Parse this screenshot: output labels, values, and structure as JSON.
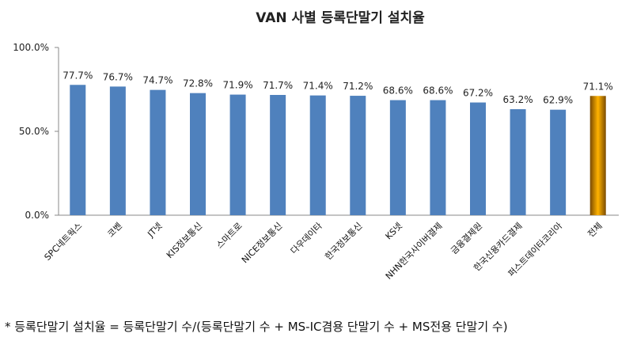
{
  "chart_data": {
    "type": "bar",
    "title": "VAN 사별 등록단말기 설치율",
    "categories": [
      "SPC네트웍스",
      "코벤",
      "JT넷",
      "KIS정보통신",
      "스마트로",
      "NICE정보통신",
      "다우데이타",
      "한국정보통신",
      "KS넷",
      "NHN한국사이버결제",
      "금융결제원",
      "한국신용카드결제",
      "퍼스트데이타코리아",
      "전체"
    ],
    "values": [
      77.7,
      76.7,
      74.7,
      72.8,
      71.9,
      71.7,
      71.4,
      71.2,
      68.6,
      68.6,
      67.2,
      63.2,
      62.9,
      71.1
    ],
    "data_labels": [
      "77.7%",
      "76.7%",
      "74.7%",
      "72.8%",
      "71.9%",
      "71.7%",
      "71.4%",
      "71.2%",
      "68.6%",
      "68.6%",
      "67.2%",
      "63.2%",
      "62.9%",
      "71.1%"
    ],
    "ylim": [
      0,
      100
    ],
    "yticks": [
      "0.0%",
      "50.0%",
      "100.0%"
    ],
    "grid": false,
    "legend": "none",
    "colors": {
      "bar": "#4f81bd",
      "total_bar": "#c8900c"
    },
    "footnote": "* 등록단말기 설치율 = 등록단말기 수/(등록단말기 수 + MS-IC겸용 단말기 수 + MS전용 단말기 수)"
  }
}
